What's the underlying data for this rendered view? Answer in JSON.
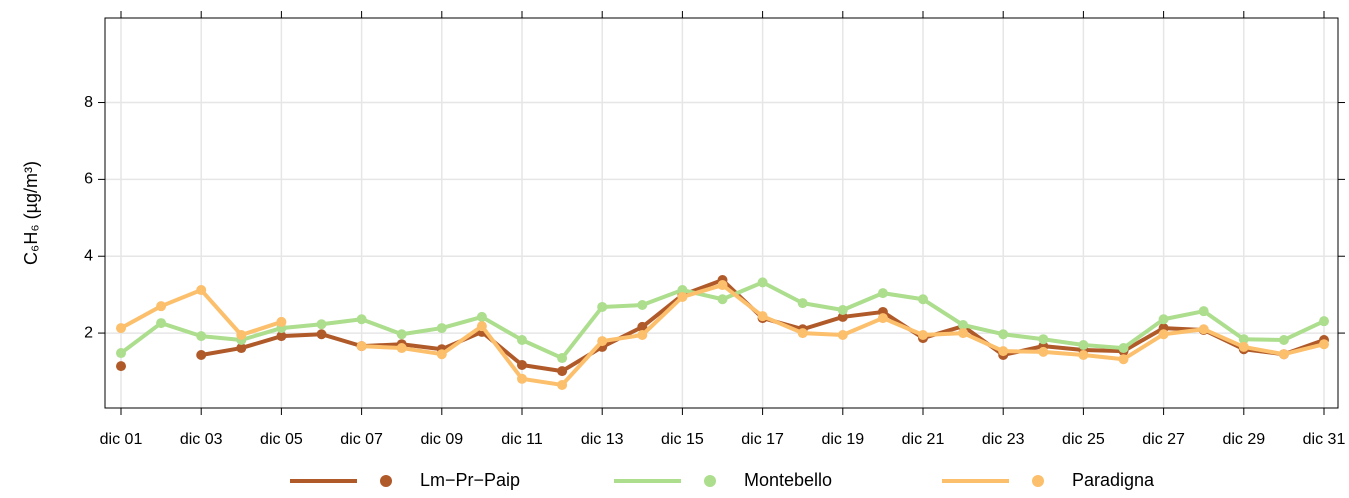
{
  "chart_data": {
    "type": "line",
    "ylabel": "C₆H₆ (µg/m³)",
    "categories": [
      "dic 01",
      null,
      "dic 03",
      null,
      "dic 05",
      null,
      "dic 07",
      null,
      "dic 09",
      null,
      "dic 11",
      null,
      "dic 13",
      null,
      "dic 15",
      null,
      "dic 17",
      null,
      "dic 19",
      null,
      "dic 21",
      null,
      "dic 23",
      null,
      "dic 25",
      null,
      "dic 27",
      null,
      "dic 29",
      null,
      "dic 31"
    ],
    "series": [
      {
        "name": "Lm−Pr−Paip",
        "color": "#b05a2a",
        "values": [
          1.14,
          null,
          1.43,
          1.61,
          1.92,
          1.97,
          1.66,
          1.71,
          1.58,
          2.03,
          1.17,
          1.01,
          1.64,
          2.16,
          2.99,
          3.38,
          2.39,
          2.1,
          2.42,
          2.55,
          1.87,
          2.18,
          1.43,
          1.66,
          1.56,
          1.53,
          2.13,
          2.08,
          1.58,
          1.45,
          1.82
        ]
      },
      {
        "name": "Montebello",
        "color": "#acde8e",
        "values": [
          1.48,
          2.26,
          1.92,
          1.82,
          2.13,
          2.23,
          2.36,
          1.97,
          2.13,
          2.42,
          1.82,
          1.35,
          2.68,
          2.73,
          3.12,
          2.88,
          3.32,
          2.78,
          2.6,
          3.04,
          2.88,
          2.21,
          1.97,
          1.84,
          1.69,
          1.61,
          2.36,
          2.57,
          1.84,
          1.82,
          2.31
        ]
      },
      {
        "name": "Paradigna",
        "color": "#fcbf6c",
        "values": [
          2.13,
          2.7,
          3.12,
          1.95,
          2.29,
          null,
          1.66,
          1.61,
          1.45,
          2.18,
          0.81,
          0.65,
          1.79,
          1.95,
          2.94,
          3.25,
          2.44,
          2.0,
          1.95,
          2.39,
          1.95,
          2.0,
          1.53,
          1.51,
          1.43,
          1.32,
          1.97,
          2.1,
          1.64,
          1.45,
          1.71
        ]
      }
    ],
    "ylim": [
      0.05,
      10.2
    ],
    "yticks": [
      2,
      4,
      6,
      8
    ],
    "grid": true,
    "legend": "bottom"
  }
}
